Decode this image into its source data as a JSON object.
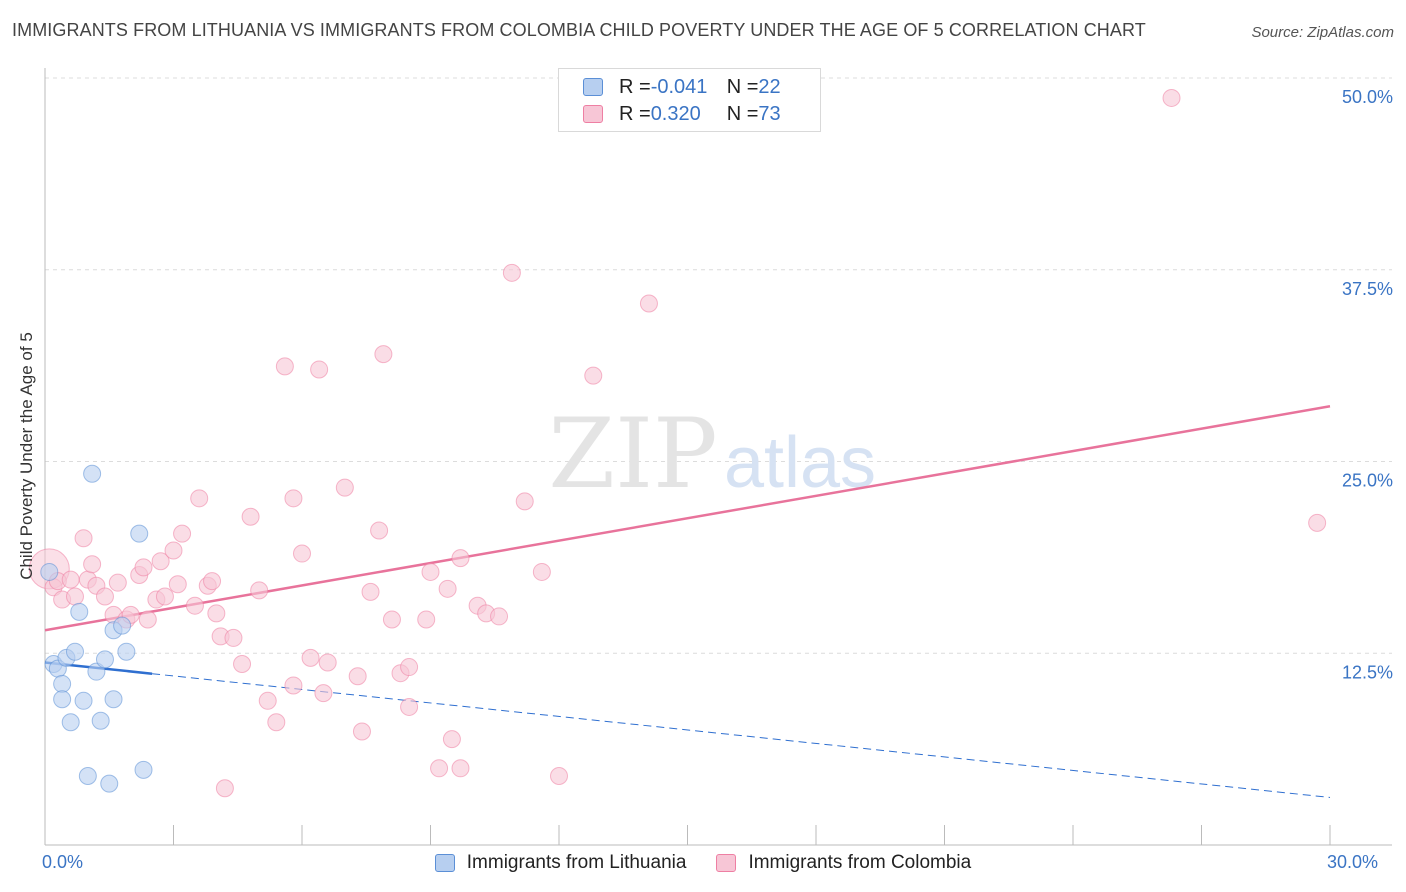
{
  "title": "IMMIGRANTS FROM LITHUANIA VS IMMIGRANTS FROM COLOMBIA CHILD POVERTY UNDER THE AGE OF 5 CORRELATION CHART",
  "source": "Source: ZipAtlas.com",
  "watermark": {
    "zip": "ZIP",
    "atlas": "atlas"
  },
  "legend_top": {
    "rows": [
      {
        "r_label": "R = ",
        "r_value": "-0.041",
        "n_label": "N = ",
        "n_value": "22",
        "color": "#5b8fd6"
      },
      {
        "r_label": "R = ",
        "r_value": "0.320",
        "n_label": "N = ",
        "n_value": "73",
        "color": "#ee7fa3"
      }
    ]
  },
  "chart_data": {
    "type": "scatter",
    "title": "IMMIGRANTS FROM LITHUANIA VS IMMIGRANTS FROM COLOMBIA CHILD POVERTY UNDER THE AGE OF 5 CORRELATION CHART",
    "xlabel": "",
    "ylabel": "Child Poverty Under the Age of 5",
    "xlim": [
      0,
      30
    ],
    "ylim": [
      0,
      50
    ],
    "x_tick_labels": [
      "0.0%",
      "30.0%"
    ],
    "y_ticks": [
      12.5,
      25.0,
      37.5,
      50.0
    ],
    "y_tick_labels": [
      "12.5%",
      "25.0%",
      "37.5%",
      "50.0%"
    ],
    "grid": true,
    "legend": "bottom",
    "series": [
      {
        "name": "Immigrants from Lithuania",
        "color": "#5b8fd6",
        "fill": "#b7cff0",
        "points": [
          [
            0.1,
            17.8
          ],
          [
            0.2,
            11.8
          ],
          [
            0.3,
            11.5
          ],
          [
            0.4,
            10.5
          ],
          [
            0.4,
            9.5
          ],
          [
            0.5,
            12.2
          ],
          [
            0.6,
            8.0
          ],
          [
            0.7,
            12.6
          ],
          [
            0.8,
            15.2
          ],
          [
            0.9,
            9.4
          ],
          [
            1.0,
            4.5
          ],
          [
            1.1,
            24.2
          ],
          [
            1.2,
            11.3
          ],
          [
            1.3,
            8.1
          ],
          [
            1.4,
            12.1
          ],
          [
            1.5,
            4.0
          ],
          [
            1.6,
            9.5
          ],
          [
            1.6,
            14.0
          ],
          [
            1.8,
            14.3
          ],
          [
            1.9,
            12.6
          ],
          [
            2.2,
            20.3
          ],
          [
            2.3,
            4.9
          ]
        ],
        "trend": {
          "x0": 0,
          "y0": 11.9,
          "x_solid_end": 2.5,
          "x1": 30,
          "y1": 3.1
        }
      },
      {
        "name": "Immigrants from Colombia",
        "color": "#ee7fa3",
        "fill": "#f7c6d6",
        "points": [
          [
            0.1,
            18.0
          ],
          [
            0.2,
            16.8
          ],
          [
            0.3,
            17.2
          ],
          [
            0.4,
            16.0
          ],
          [
            0.6,
            17.3
          ],
          [
            0.7,
            16.2
          ],
          [
            0.9,
            20.0
          ],
          [
            1.0,
            17.3
          ],
          [
            1.1,
            18.3
          ],
          [
            1.2,
            16.9
          ],
          [
            1.4,
            16.2
          ],
          [
            1.6,
            15.0
          ],
          [
            1.7,
            17.1
          ],
          [
            1.9,
            14.7
          ],
          [
            2.0,
            15.0
          ],
          [
            2.2,
            17.6
          ],
          [
            2.3,
            18.1
          ],
          [
            2.4,
            14.7
          ],
          [
            2.6,
            16.0
          ],
          [
            2.7,
            18.5
          ],
          [
            2.8,
            16.2
          ],
          [
            3.0,
            19.2
          ],
          [
            3.2,
            20.3
          ],
          [
            3.1,
            17.0
          ],
          [
            3.5,
            15.6
          ],
          [
            3.6,
            22.6
          ],
          [
            3.8,
            16.9
          ],
          [
            3.9,
            17.2
          ],
          [
            4.0,
            15.1
          ],
          [
            4.1,
            13.6
          ],
          [
            4.2,
            3.7
          ],
          [
            4.4,
            13.5
          ],
          [
            4.6,
            11.8
          ],
          [
            4.8,
            21.4
          ],
          [
            5.0,
            16.6
          ],
          [
            5.2,
            9.4
          ],
          [
            5.4,
            8.0
          ],
          [
            5.6,
            31.2
          ],
          [
            5.8,
            22.6
          ],
          [
            5.8,
            10.4
          ],
          [
            6.0,
            19.0
          ],
          [
            6.2,
            12.2
          ],
          [
            6.4,
            31.0
          ],
          [
            6.5,
            9.9
          ],
          [
            6.6,
            11.9
          ],
          [
            7.0,
            23.3
          ],
          [
            7.3,
            11.0
          ],
          [
            7.4,
            7.4
          ],
          [
            7.6,
            16.5
          ],
          [
            7.8,
            20.5
          ],
          [
            7.9,
            32.0
          ],
          [
            8.1,
            14.7
          ],
          [
            8.3,
            11.2
          ],
          [
            8.5,
            11.6
          ],
          [
            8.5,
            9.0
          ],
          [
            8.9,
            14.7
          ],
          [
            9.0,
            17.8
          ],
          [
            9.2,
            5.0
          ],
          [
            9.4,
            16.7
          ],
          [
            9.5,
            6.9
          ],
          [
            9.7,
            5.0
          ],
          [
            9.7,
            18.7
          ],
          [
            10.1,
            15.6
          ],
          [
            10.3,
            15.1
          ],
          [
            10.6,
            14.9
          ],
          [
            10.9,
            37.3
          ],
          [
            11.2,
            22.4
          ],
          [
            11.6,
            17.8
          ],
          [
            12.0,
            4.5
          ],
          [
            12.8,
            30.6
          ],
          [
            14.1,
            35.3
          ],
          [
            26.3,
            48.7
          ],
          [
            29.7,
            21.0
          ]
        ],
        "trend": {
          "x0": 0,
          "y0": 14.0,
          "x1": 30,
          "y1": 28.6
        }
      }
    ]
  }
}
